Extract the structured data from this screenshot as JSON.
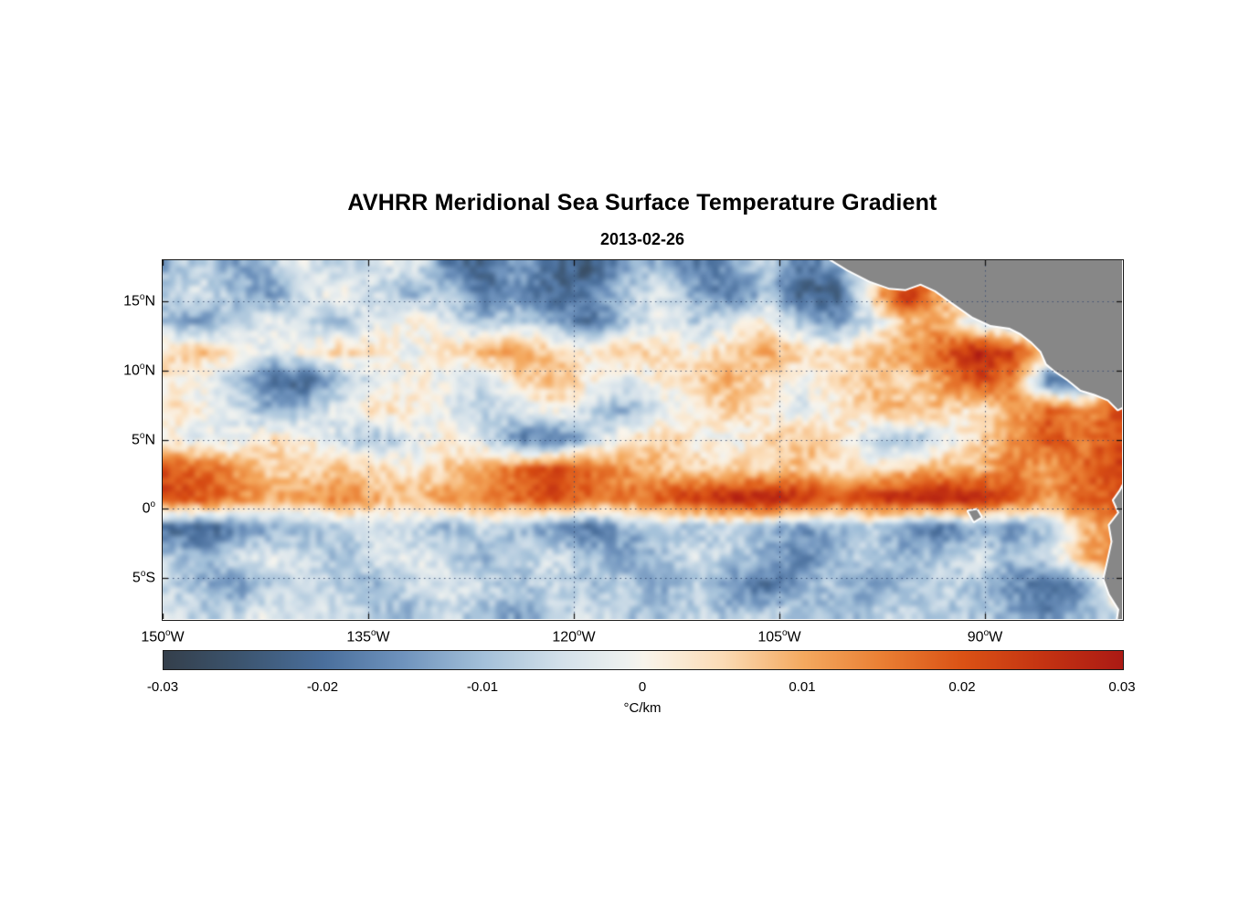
{
  "title": "AVHRR Meridional Sea Surface Temperature Gradient",
  "subtitle": "2013-02-26",
  "chart_data": {
    "type": "heatmap",
    "title": "AVHRR Meridional Sea Surface Temperature Gradient",
    "date": "2013-02-26",
    "units": "°C/km",
    "lon_range": [
      -150,
      -80
    ],
    "lat_range": [
      -8,
      18
    ],
    "x_ticks": [
      {
        "deg": "150",
        "dir": "W"
      },
      {
        "deg": "135",
        "dir": "W"
      },
      {
        "deg": "120",
        "dir": "W"
      },
      {
        "deg": "105",
        "dir": "W"
      },
      {
        "deg": "90",
        "dir": "W"
      }
    ],
    "x_tick_lons": [
      -150,
      -135,
      -120,
      -105,
      -90
    ],
    "y_ticks": [
      {
        "deg": "15",
        "dir": "N"
      },
      {
        "deg": "10",
        "dir": "N"
      },
      {
        "deg": "5",
        "dir": "N"
      },
      {
        "deg": "0",
        "dir": ""
      },
      {
        "deg": "5",
        "dir": "S"
      }
    ],
    "y_tick_lats": [
      15,
      10,
      5,
      0,
      -5
    ],
    "grid": {
      "description": "Coarse meridional SST gradient field (°C/km); rows north-to-south lat 18..-8, cols west-to-east lon -150..-80",
      "lat_start": 18,
      "lat_end": -8,
      "lon_start": -150,
      "lon_end": -80,
      "values": [
        [
          -0.012,
          -0.006,
          -0.015,
          -0.008,
          -0.003,
          -0.01,
          -0.004,
          -0.002,
          -0.018,
          -0.022,
          -0.012,
          -0.02,
          -0.025,
          -0.015,
          -0.01,
          -0.02,
          -0.015,
          -0.006,
          -0.02,
          -0.012,
          -0.004,
          0.0,
          0.002,
          0.0,
          0.0,
          0.0,
          0.0,
          0.0
        ],
        [
          -0.008,
          -0.004,
          -0.01,
          -0.015,
          -0.005,
          0.002,
          -0.006,
          -0.012,
          -0.006,
          -0.02,
          -0.015,
          -0.022,
          -0.018,
          -0.008,
          -0.004,
          -0.012,
          -0.02,
          -0.01,
          -0.022,
          -0.022,
          0.006,
          0.028,
          0.008,
          0.002,
          0.0,
          0.0,
          0.0,
          0.0
        ],
        [
          -0.01,
          -0.015,
          -0.008,
          -0.002,
          -0.006,
          -0.01,
          -0.003,
          0.002,
          -0.004,
          -0.01,
          -0.006,
          -0.012,
          -0.02,
          -0.01,
          -0.002,
          -0.008,
          -0.004,
          0.002,
          -0.01,
          -0.015,
          -0.005,
          0.008,
          0.01,
          -0.004,
          -0.012,
          -0.008,
          0.002,
          0.0
        ],
        [
          0.004,
          0.008,
          0.002,
          -0.004,
          0.002,
          0.006,
          0.003,
          -0.002,
          0.004,
          0.008,
          0.012,
          0.006,
          0.002,
          0.008,
          0.004,
          0.001,
          0.006,
          0.01,
          0.006,
          0.002,
          0.008,
          0.012,
          0.018,
          0.028,
          0.022,
          0.008,
          -0.01,
          -0.015
        ],
        [
          0.002,
          -0.002,
          -0.008,
          -0.02,
          -0.022,
          -0.01,
          -0.004,
          0.002,
          -0.002,
          -0.006,
          0.004,
          0.008,
          0.002,
          -0.004,
          0.002,
          0.006,
          0.01,
          0.004,
          -0.002,
          0.004,
          0.008,
          0.004,
          0.012,
          0.022,
          0.015,
          -0.018,
          -0.02,
          0.012
        ],
        [
          0.004,
          0.002,
          -0.004,
          -0.012,
          -0.008,
          -0.002,
          0.004,
          0.002,
          -0.002,
          -0.008,
          -0.004,
          0.002,
          -0.006,
          -0.012,
          -0.004,
          0.002,
          0.006,
          0.002,
          -0.004,
          0.002,
          0.006,
          0.01,
          0.006,
          0.002,
          0.01,
          0.018,
          0.012,
          0.02
        ],
        [
          0.002,
          -0.004,
          -0.002,
          0.004,
          0.002,
          -0.006,
          -0.01,
          -0.004,
          0.002,
          -0.004,
          -0.018,
          -0.02,
          -0.008,
          0.002,
          0.006,
          0.002,
          -0.002,
          0.004,
          0.008,
          0.004,
          -0.006,
          -0.012,
          -0.004,
          0.004,
          0.012,
          0.02,
          0.015,
          0.022
        ],
        [
          0.02,
          0.018,
          0.012,
          0.006,
          0.004,
          0.008,
          0.004,
          0.002,
          0.006,
          0.01,
          0.016,
          0.022,
          0.018,
          0.012,
          0.008,
          0.004,
          0.006,
          0.004,
          0.008,
          0.004,
          0.002,
          0.006,
          0.01,
          0.008,
          0.015,
          0.01,
          0.018,
          0.022
        ],
        [
          0.022,
          0.02,
          0.015,
          0.01,
          0.012,
          0.015,
          0.01,
          0.008,
          0.012,
          0.015,
          0.018,
          0.022,
          0.018,
          0.015,
          0.02,
          0.025,
          0.028,
          0.03,
          0.026,
          0.02,
          0.025,
          0.028,
          0.03,
          0.028,
          0.02,
          0.012,
          0.018,
          0.02
        ],
        [
          -0.02,
          -0.022,
          -0.018,
          -0.012,
          -0.012,
          -0.008,
          -0.004,
          -0.008,
          -0.012,
          -0.006,
          -0.01,
          -0.015,
          -0.02,
          -0.012,
          -0.008,
          -0.01,
          -0.006,
          -0.01,
          -0.015,
          -0.012,
          -0.008,
          -0.015,
          -0.02,
          -0.012,
          -0.015,
          -0.01,
          0.008,
          0.012
        ],
        [
          -0.008,
          -0.012,
          -0.006,
          -0.002,
          -0.006,
          -0.01,
          -0.004,
          -0.002,
          -0.006,
          -0.012,
          -0.008,
          -0.004,
          -0.008,
          -0.015,
          -0.01,
          -0.004,
          -0.008,
          -0.012,
          -0.018,
          -0.01,
          -0.006,
          -0.012,
          -0.008,
          -0.004,
          -0.01,
          -0.006,
          0.01,
          0.015
        ],
        [
          -0.006,
          -0.01,
          -0.015,
          -0.008,
          -0.004,
          -0.008,
          -0.012,
          -0.006,
          -0.002,
          -0.006,
          -0.01,
          -0.006,
          -0.01,
          -0.006,
          -0.012,
          -0.008,
          -0.015,
          -0.02,
          -0.012,
          -0.008,
          -0.015,
          -0.01,
          -0.006,
          -0.01,
          -0.015,
          -0.022,
          -0.018,
          0.008
        ],
        [
          -0.004,
          -0.008,
          -0.006,
          -0.002,
          -0.006,
          -0.004,
          -0.008,
          -0.012,
          -0.006,
          -0.01,
          -0.014,
          -0.008,
          -0.004,
          -0.008,
          -0.012,
          -0.006,
          -0.01,
          -0.006,
          -0.008,
          -0.012,
          -0.008,
          -0.006,
          -0.01,
          -0.008,
          -0.012,
          -0.016,
          -0.01,
          -0.006
        ]
      ]
    },
    "colormap": [
      [
        -0.03,
        "#343f4b"
      ],
      [
        -0.025,
        "#3c5570"
      ],
      [
        -0.02,
        "#4a6f9c"
      ],
      [
        -0.015,
        "#6f93bd"
      ],
      [
        -0.01,
        "#a3c0d9"
      ],
      [
        -0.005,
        "#d4e1ea"
      ],
      [
        -0.001,
        "#eef1ef"
      ],
      [
        0.0,
        "#f7f4ec"
      ],
      [
        0.001,
        "#faf0e1"
      ],
      [
        0.005,
        "#fbdbb5"
      ],
      [
        0.01,
        "#f4a95f"
      ],
      [
        0.015,
        "#e97e33"
      ],
      [
        0.02,
        "#da5215"
      ],
      [
        0.025,
        "#c43312"
      ],
      [
        0.03,
        "#ab1a14"
      ]
    ],
    "colorbar": {
      "min": -0.03,
      "max": 0.03,
      "ticks": [
        "-0.03",
        "-0.02",
        "-0.01",
        "0",
        "0.01",
        "0.02",
        "0.03"
      ],
      "tick_values": [
        -0.03,
        -0.02,
        -0.01,
        0,
        0.01,
        0.02,
        0.03
      ],
      "label": "°C/km"
    },
    "land_color": "#878787",
    "coast_color": "#ffffff",
    "land_polygons": [
      {
        "name": "central-america",
        "points": [
          [
            -102.5,
            19
          ],
          [
            -101.3,
            18.1
          ],
          [
            -100.0,
            17.3
          ],
          [
            -98.4,
            16.5
          ],
          [
            -97.0,
            16.0
          ],
          [
            -95.8,
            15.9
          ],
          [
            -94.7,
            16.3
          ],
          [
            -93.6,
            15.8
          ],
          [
            -92.2,
            14.8
          ],
          [
            -90.9,
            13.9
          ],
          [
            -89.6,
            13.3
          ],
          [
            -88.2,
            13.1
          ],
          [
            -87.4,
            12.7
          ],
          [
            -86.6,
            12.1
          ],
          [
            -85.9,
            11.4
          ],
          [
            -85.5,
            10.5
          ],
          [
            -84.9,
            10.0
          ],
          [
            -84.0,
            9.4
          ],
          [
            -83.0,
            8.6
          ],
          [
            -82.0,
            8.3
          ],
          [
            -81.0,
            7.9
          ],
          [
            -80.3,
            7.2
          ],
          [
            -79.5,
            7.6
          ],
          [
            -78.5,
            7.9
          ],
          [
            -78.0,
            19
          ]
        ]
      },
      {
        "name": "south-america",
        "points": [
          [
            -78.0,
            2.6
          ],
          [
            -79.6,
            2.3
          ],
          [
            -80.1,
            1.3
          ],
          [
            -80.6,
            0.6
          ],
          [
            -80.2,
            -0.3
          ],
          [
            -80.9,
            -1.2
          ],
          [
            -80.7,
            -2.4
          ],
          [
            -81.1,
            -4.2
          ],
          [
            -81.3,
            -5.1
          ],
          [
            -80.9,
            -6.2
          ],
          [
            -80.2,
            -7.3
          ],
          [
            -80.4,
            -8.6
          ],
          [
            -78.0,
            -8.6
          ]
        ]
      },
      {
        "name": "galapagos",
        "points": [
          [
            -91.2,
            -0.2
          ],
          [
            -90.6,
            -0.1
          ],
          [
            -90.3,
            -0.6
          ],
          [
            -90.8,
            -0.9
          ]
        ]
      }
    ]
  }
}
